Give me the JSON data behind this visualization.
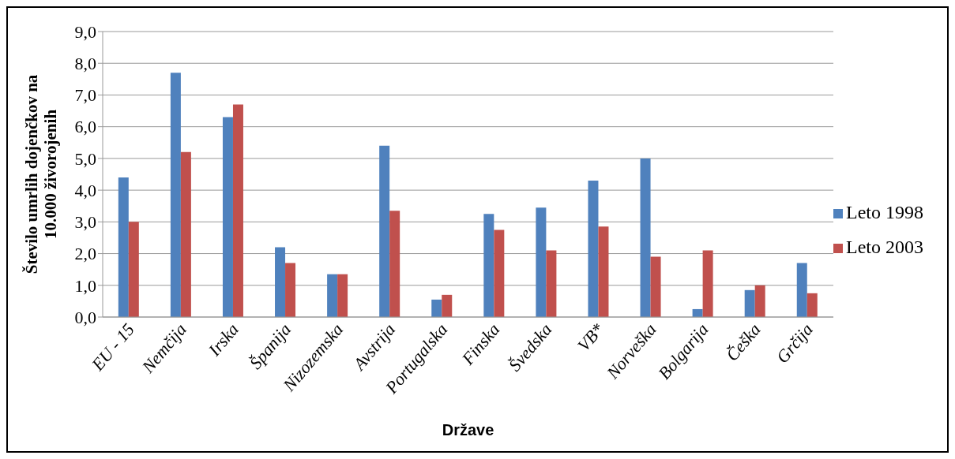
{
  "chart_data": {
    "type": "bar",
    "xlabel": "Države",
    "ylabel": "Število umrlih dojenčkov na 10.000 živorojenih",
    "categories": [
      "EU - 15",
      "Nemčija",
      "Irska",
      "Španija",
      "Nizozemska",
      "Avstrija",
      "Portugalska",
      "Finska",
      "Švedska",
      "VB*",
      "Norveška",
      "Bolgarija",
      "Češka",
      "Grčija"
    ],
    "series": [
      {
        "name": "Leto 1998",
        "color": "#4f81bd",
        "values": [
          4.4,
          7.7,
          6.3,
          2.2,
          1.35,
          5.4,
          0.55,
          3.25,
          3.45,
          4.3,
          5.0,
          0.25,
          0.85,
          1.7
        ]
      },
      {
        "name": "Leto 2003",
        "color": "#c0504d",
        "values": [
          3.0,
          5.2,
          6.7,
          1.7,
          1.35,
          3.35,
          0.7,
          2.75,
          2.1,
          2.85,
          1.9,
          2.1,
          1.0,
          0.75
        ]
      }
    ],
    "ylim": [
      0,
      9
    ],
    "yticks": [
      {
        "value": 0,
        "label": "0,0"
      },
      {
        "value": 1,
        "label": "1,0"
      },
      {
        "value": 2,
        "label": "2,0"
      },
      {
        "value": 3,
        "label": "3,0"
      },
      {
        "value": 4,
        "label": "4,0"
      },
      {
        "value": 5,
        "label": "5,0"
      },
      {
        "value": 6,
        "label": "6,0"
      },
      {
        "value": 7,
        "label": "7,0"
      },
      {
        "value": 8,
        "label": "8,0"
      },
      {
        "value": 9,
        "label": "9,0"
      }
    ],
    "grid": "y",
    "legend": "right"
  }
}
